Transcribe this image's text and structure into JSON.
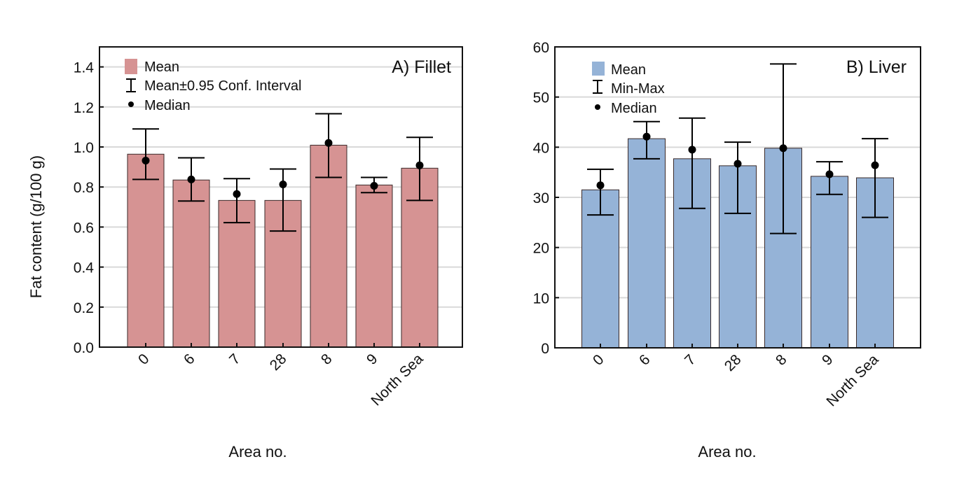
{
  "chart_data": [
    {
      "type": "bar",
      "title": "A) Fillet",
      "xlabel": "Area no.",
      "ylabel": "Fat content (g/100 g)",
      "categories": [
        "0",
        "6",
        "7",
        "28",
        "8",
        "9",
        "North Sea"
      ],
      "ylim": [
        0,
        1.5
      ],
      "yticks": [
        0.0,
        0.2,
        0.4,
        0.6,
        0.8,
        1.0,
        1.2,
        1.4
      ],
      "ytick_labels": [
        "0.0",
        "0.2",
        "0.4",
        "0.6",
        "0.8",
        "1.0",
        "1.2",
        "1.4"
      ],
      "grid": true,
      "bar_color": "#d69393",
      "series": [
        {
          "name": "Mean",
          "values": [
            0.964,
            0.835,
            0.733,
            0.733,
            1.009,
            0.81,
            0.894
          ]
        },
        {
          "name": "Mean±0.95 Conf. Interval",
          "lower": [
            0.838,
            0.73,
            0.622,
            0.58,
            0.848,
            0.772,
            0.733
          ],
          "upper": [
            1.09,
            0.946,
            0.842,
            0.89,
            1.166,
            0.848,
            1.048
          ]
        },
        {
          "name": "Median",
          "values": [
            0.932,
            0.838,
            0.765,
            0.813,
            1.02,
            0.806,
            0.908
          ]
        }
      ],
      "legend": {
        "placement": "top-left",
        "items": [
          {
            "label": "Mean",
            "symbol": "bar"
          },
          {
            "label": "Mean±0.95 Conf. Interval",
            "symbol": "errorbar"
          },
          {
            "label": "Median",
            "symbol": "dot"
          }
        ]
      }
    },
    {
      "type": "bar",
      "title": "B) Liver",
      "xlabel": "Area no.",
      "ylabel": "",
      "categories": [
        "0",
        "6",
        "7",
        "28",
        "8",
        "9",
        "North Sea"
      ],
      "ylim": [
        0,
        60
      ],
      "yticks": [
        0,
        10,
        20,
        30,
        40,
        50,
        60
      ],
      "ytick_labels": [
        "0",
        "10",
        "20",
        "30",
        "40",
        "50",
        "60"
      ],
      "grid": true,
      "bar_color": "#95b3d7",
      "series": [
        {
          "name": "Mean",
          "values": [
            31.5,
            41.7,
            37.7,
            36.3,
            39.8,
            34.2,
            33.9
          ]
        },
        {
          "name": "Min-Max",
          "lower": [
            26.5,
            37.7,
            27.8,
            26.8,
            22.8,
            30.6,
            26.0
          ],
          "upper": [
            35.6,
            45.1,
            45.8,
            41.0,
            56.6,
            37.1,
            41.7
          ]
        },
        {
          "name": "Median",
          "values": [
            32.4,
            42.1,
            39.5,
            36.7,
            39.8,
            34.6,
            36.4
          ]
        }
      ],
      "legend": {
        "placement": "top-left",
        "items": [
          {
            "label": "Mean",
            "symbol": "bar"
          },
          {
            "label": "Min-Max",
            "symbol": "errorbar"
          },
          {
            "label": "Median",
            "symbol": "dot"
          }
        ]
      }
    }
  ]
}
